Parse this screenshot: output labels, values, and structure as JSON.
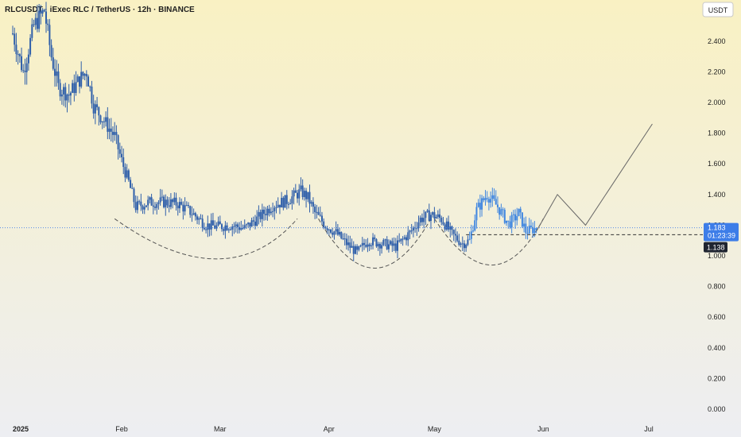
{
  "header": {
    "title": "RLCUSDT · iExec RLC / TetherUS · 12h · BINANCE"
  },
  "currency_badge": "USDT",
  "price_labels": {
    "last": "1.183",
    "countdown": "01:23:39",
    "level": "1.138"
  },
  "colors": {
    "bg_top": "#f9f1c3",
    "bg_bottom": "#edeef2",
    "candle": "#2f5faa",
    "candle_recent": "#3f86e0",
    "last_price_tag": "#3d7de8",
    "level_tag": "#1f2430",
    "guide": "#555555",
    "text": "#1f1f1f"
  },
  "chart_data": {
    "type": "candlestick",
    "title": "RLCUSDT · iExec RLC / TetherUS · 12h · BINANCE",
    "xlabel": "",
    "ylabel": "",
    "y_axis": {
      "min": 0.0,
      "max": 2.6,
      "ticks": [
        "0.000",
        "0.200",
        "0.400",
        "0.600",
        "0.800",
        "1.000",
        "1.200",
        "1.400",
        "1.600",
        "1.800",
        "2.000",
        "2.200",
        "2.400"
      ]
    },
    "x_axis": {
      "labels": [
        "2025",
        "Feb",
        "Mar",
        "Apr",
        "May",
        "Jun",
        "Jul"
      ],
      "range": [
        "2025-01-01",
        "2025-07-15"
      ]
    },
    "grid": false,
    "close_path": [
      {
        "date": "2025-01-01",
        "value": 2.45
      },
      {
        "date": "2025-01-04",
        "value": 2.2
      },
      {
        "date": "2025-01-07",
        "value": 2.5
      },
      {
        "date": "2025-01-10",
        "value": 2.6
      },
      {
        "date": "2025-01-12",
        "value": 2.3
      },
      {
        "date": "2025-01-14",
        "value": 2.1
      },
      {
        "date": "2025-01-17",
        "value": 2.05
      },
      {
        "date": "2025-01-20",
        "value": 2.15
      },
      {
        "date": "2025-01-22",
        "value": 2.2
      },
      {
        "date": "2025-01-24",
        "value": 1.98
      },
      {
        "date": "2025-01-27",
        "value": 1.88
      },
      {
        "date": "2025-01-30",
        "value": 1.78
      },
      {
        "date": "2025-02-01",
        "value": 1.62
      },
      {
        "date": "2025-02-03",
        "value": 1.48
      },
      {
        "date": "2025-02-05",
        "value": 1.32
      },
      {
        "date": "2025-02-09",
        "value": 1.35
      },
      {
        "date": "2025-02-13",
        "value": 1.35
      },
      {
        "date": "2025-02-17",
        "value": 1.34
      },
      {
        "date": "2025-02-21",
        "value": 1.28
      },
      {
        "date": "2025-02-25",
        "value": 1.2
      },
      {
        "date": "2025-02-28",
        "value": 1.19
      },
      {
        "date": "2025-03-04",
        "value": 1.2
      },
      {
        "date": "2025-03-08",
        "value": 1.18
      },
      {
        "date": "2025-03-12",
        "value": 1.25
      },
      {
        "date": "2025-03-16",
        "value": 1.33
      },
      {
        "date": "2025-03-20",
        "value": 1.36
      },
      {
        "date": "2025-03-24",
        "value": 1.42
      },
      {
        "date": "2025-03-26",
        "value": 1.38
      },
      {
        "date": "2025-03-28",
        "value": 1.28
      },
      {
        "date": "2025-03-31",
        "value": 1.2
      },
      {
        "date": "2025-04-03",
        "value": 1.15
      },
      {
        "date": "2025-04-06",
        "value": 1.08
      },
      {
        "date": "2025-04-09",
        "value": 1.02
      },
      {
        "date": "2025-04-12",
        "value": 1.1
      },
      {
        "date": "2025-04-16",
        "value": 1.08
      },
      {
        "date": "2025-04-20",
        "value": 1.06
      },
      {
        "date": "2025-04-24",
        "value": 1.15
      },
      {
        "date": "2025-04-27",
        "value": 1.24
      },
      {
        "date": "2025-04-30",
        "value": 1.27
      },
      {
        "date": "2025-05-03",
        "value": 1.24
      },
      {
        "date": "2025-05-06",
        "value": 1.14
      },
      {
        "date": "2025-05-09",
        "value": 1.08
      },
      {
        "date": "2025-05-11",
        "value": 1.1
      },
      {
        "date": "2025-05-13",
        "value": 1.3
      },
      {
        "date": "2025-05-16",
        "value": 1.4
      },
      {
        "date": "2025-05-19",
        "value": 1.32
      },
      {
        "date": "2025-05-22",
        "value": 1.21
      },
      {
        "date": "2025-05-24",
        "value": 1.25
      },
      {
        "date": "2025-05-25",
        "value": 1.28
      },
      {
        "date": "2025-05-27",
        "value": 1.16
      },
      {
        "date": "2025-05-30",
        "value": 1.18
      }
    ],
    "annotations": {
      "last_price": 1.183,
      "level_line": 1.138,
      "neckline": 1.142,
      "rounding_bottoms": [
        {
          "start": "2025-01-30",
          "bottom": "2025-03-03",
          "end": "2025-03-23",
          "low": 0.98
        },
        {
          "start": "2025-03-29",
          "bottom": "2025-04-14",
          "end": "2025-04-30",
          "low": 0.92
        },
        {
          "start": "2025-05-01",
          "bottom": "2025-05-18",
          "end": "2025-06-01",
          "low": 0.94
        }
      ],
      "projection": [
        {
          "date": "2025-05-30",
          "value": 1.16
        },
        {
          "date": "2025-06-05",
          "value": 1.4
        },
        {
          "date": "2025-06-13",
          "value": 1.2
        },
        {
          "date": "2025-07-02",
          "value": 1.86
        }
      ]
    }
  }
}
